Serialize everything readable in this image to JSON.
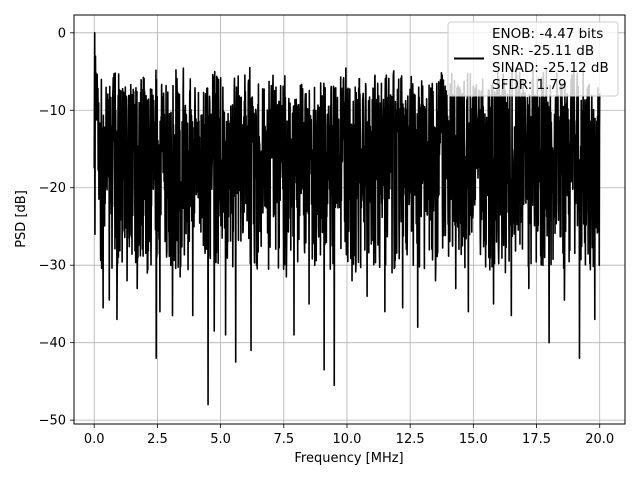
{
  "chart_data": {
    "type": "line",
    "xlabel": "Frequency [MHz]",
    "ylabel": "PSD [dB]",
    "xlim": [
      -0.8,
      21.0
    ],
    "ylim": [
      -50.5,
      2.3
    ],
    "x_ticks": [
      0.0,
      2.5,
      5.0,
      7.5,
      10.0,
      12.5,
      15.0,
      17.5,
      20.0
    ],
    "x_tick_labels": [
      "0.0",
      "2.5",
      "5.0",
      "7.5",
      "10.0",
      "12.5",
      "15.0",
      "17.5",
      "20.0"
    ],
    "y_ticks": [
      0,
      -10,
      -20,
      -30,
      -40,
      -50
    ],
    "y_tick_labels": [
      "0",
      "−10",
      "−20",
      "−30",
      "−40",
      "−50"
    ],
    "grid": true,
    "legend_position": "top-right",
    "line_color": "#000000",
    "legend": {
      "lines": [
        "ENOB: -4.47 bits",
        "SNR: -25.11 dB",
        "SINAD: -25.12 dB",
        "SFDR: 1.79"
      ]
    },
    "series": [
      {
        "x_range": [
          0.0,
          20.0
        ],
        "points": 2048,
        "peak": [
          0.0,
          0.0
        ],
        "upper_envelope_db": [
          -7.5,
          -5.0
        ],
        "typical_range_db": [
          -27.0,
          -7.0
        ],
        "dips": [
          [
            0.35,
            -35.5
          ],
          [
            0.6,
            -34.5
          ],
          [
            0.9,
            -37.0
          ],
          [
            1.3,
            -32.0
          ],
          [
            1.7,
            -33.0
          ],
          [
            2.1,
            -31.0
          ],
          [
            2.45,
            -42.0
          ],
          [
            2.6,
            -36.0
          ],
          [
            3.1,
            -36.5
          ],
          [
            3.4,
            -31.5
          ],
          [
            3.9,
            -36.5
          ],
          [
            4.5,
            -48.0
          ],
          [
            4.75,
            -38.5
          ],
          [
            5.2,
            -39.0
          ],
          [
            5.6,
            -42.5
          ],
          [
            6.2,
            -41.0
          ],
          [
            6.9,
            -30.5
          ],
          [
            7.6,
            -31.5
          ],
          [
            7.9,
            -39.0
          ],
          [
            8.5,
            -35.0
          ],
          [
            9.1,
            -43.5
          ],
          [
            9.5,
            -45.5
          ],
          [
            10.2,
            -32.0
          ],
          [
            10.8,
            -34.0
          ],
          [
            11.5,
            -36.0
          ],
          [
            12.2,
            -35.5
          ],
          [
            12.8,
            -38.0
          ],
          [
            13.5,
            -32.0
          ],
          [
            14.3,
            -33.0
          ],
          [
            14.8,
            -36.0
          ],
          [
            15.8,
            -35.0
          ],
          [
            16.5,
            -36.5
          ],
          [
            17.2,
            -33.0
          ],
          [
            18.0,
            -40.0
          ],
          [
            18.6,
            -34.5
          ],
          [
            19.2,
            -42.0
          ],
          [
            19.8,
            -37.0
          ]
        ]
      }
    ]
  }
}
